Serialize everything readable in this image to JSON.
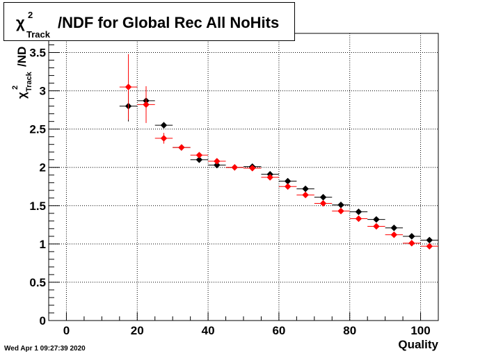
{
  "timestamp": "Wed Apr  1 09:27:39 2020",
  "chart_data": {
    "type": "scatter",
    "title_parts": {
      "chi": "χ",
      "sup": "2",
      "sub": "Track",
      "rest": "/NDF for Global Rec All NoHits"
    },
    "ylabel_parts": {
      "chi": "χ",
      "sup": "2",
      "sub": "Track",
      "rest": "/ND"
    },
    "xlabel": "Quality",
    "xlim": [
      -5,
      105
    ],
    "ylim": [
      0,
      3.75
    ],
    "xticks": [
      0,
      20,
      40,
      60,
      80,
      100
    ],
    "yticks": [
      0,
      0.5,
      1,
      1.5,
      2,
      2.5,
      3,
      3.5
    ],
    "yticklabels": [
      "0",
      "0.5",
      "1",
      "1.5",
      "2",
      "2.5",
      "3",
      "3.5"
    ],
    "grid": true,
    "bin_half_width": 2.5,
    "series": [
      {
        "color": "#000000",
        "x": [
          17.5,
          22.5,
          27.5,
          32.5,
          37.5,
          42.5,
          47.5,
          52.5,
          57.5,
          62.5,
          67.5,
          72.5,
          77.5,
          82.5,
          87.5,
          92.5,
          97.5,
          102.5
        ],
        "y": [
          2.8,
          2.87,
          2.55,
          2.26,
          2.1,
          2.03,
          2.0,
          2.01,
          1.91,
          1.82,
          1.72,
          1.61,
          1.51,
          1.42,
          1.32,
          1.21,
          1.1,
          1.05
        ],
        "yerr": [
          0.2,
          0.12,
          0.04,
          0.02,
          0.02,
          0.01,
          0.01,
          0.01,
          0.01,
          0.01,
          0.01,
          0.01,
          0.01,
          0.01,
          0.01,
          0.01,
          0.01,
          0.01
        ]
      },
      {
        "color": "#ff0000",
        "x": [
          17.5,
          22.5,
          27.5,
          32.5,
          37.5,
          42.5,
          47.5,
          52.5,
          57.5,
          62.5,
          67.5,
          72.5,
          77.5,
          82.5,
          87.5,
          92.5,
          97.5,
          102.5
        ],
        "y": [
          3.05,
          2.82,
          2.38,
          2.26,
          2.16,
          2.08,
          2.0,
          1.99,
          1.87,
          1.75,
          1.64,
          1.53,
          1.43,
          1.33,
          1.23,
          1.12,
          1.01,
          0.97
        ],
        "yerr": [
          0.43,
          0.24,
          0.07,
          0.03,
          0.02,
          0.02,
          0.01,
          0.01,
          0.01,
          0.01,
          0.01,
          0.01,
          0.01,
          0.01,
          0.01,
          0.01,
          0.01,
          0.01
        ]
      }
    ]
  }
}
